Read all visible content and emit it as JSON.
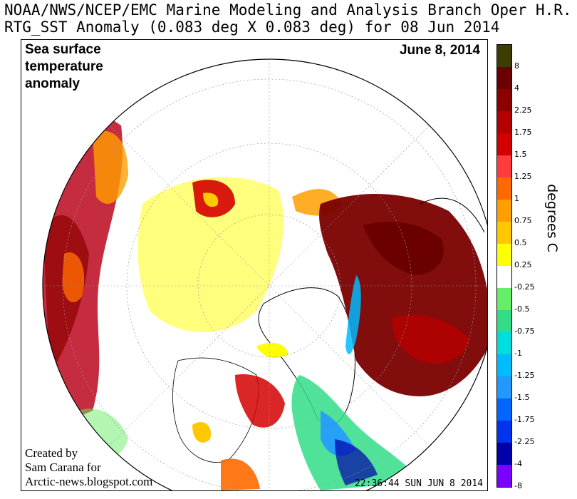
{
  "header": {
    "line1": "NOAA/NWS/NCEP/EMC Marine Modeling and Analysis Branch Oper H.R.",
    "line2": "RTG_SST Anomaly (0.083 deg X 0.083 deg) for 08 Jun 2014"
  },
  "map": {
    "title": "Sea surface temperature anomaly",
    "date": "June 8, 2014",
    "credit_line1": "Created by",
    "credit_line2": "Sam Carana for",
    "credit_line3": "Arctic-news.blogspot.com",
    "timestamp": "22:36:44  SUN JUN 8 2014"
  },
  "legend": {
    "title": "degrees C",
    "entries": [
      {
        "label": "8",
        "color": "#3d3d00"
      },
      {
        "label": "4",
        "color": "#6b0000"
      },
      {
        "label": "2.25",
        "color": "#8c0000"
      },
      {
        "label": "1.75",
        "color": "#b30000"
      },
      {
        "label": "1.5",
        "color": "#d40000"
      },
      {
        "label": "1.25",
        "color": "#ff3b3b"
      },
      {
        "label": "1",
        "color": "#ff6a00"
      },
      {
        "label": "0.75",
        "color": "#ff9f00"
      },
      {
        "label": "0.5",
        "color": "#ffc800"
      },
      {
        "label": "0.25",
        "color": "#ffff00"
      },
      {
        "label": "-0.25",
        "color": "#ffffff"
      },
      {
        "label": "-0.5",
        "color": "#66ee66"
      },
      {
        "label": "-0.75",
        "color": "#33dd88"
      },
      {
        "label": "-1",
        "color": "#00dddd"
      },
      {
        "label": "-1.25",
        "color": "#00bbff"
      },
      {
        "label": "-1.5",
        "color": "#2299ff"
      },
      {
        "label": "-1.75",
        "color": "#0066ff"
      },
      {
        "label": "-2.25",
        "color": "#0033ee"
      },
      {
        "label": "-4",
        "color": "#0000aa"
      },
      {
        "label": "-8",
        "color": "#7a00ff"
      }
    ]
  }
}
